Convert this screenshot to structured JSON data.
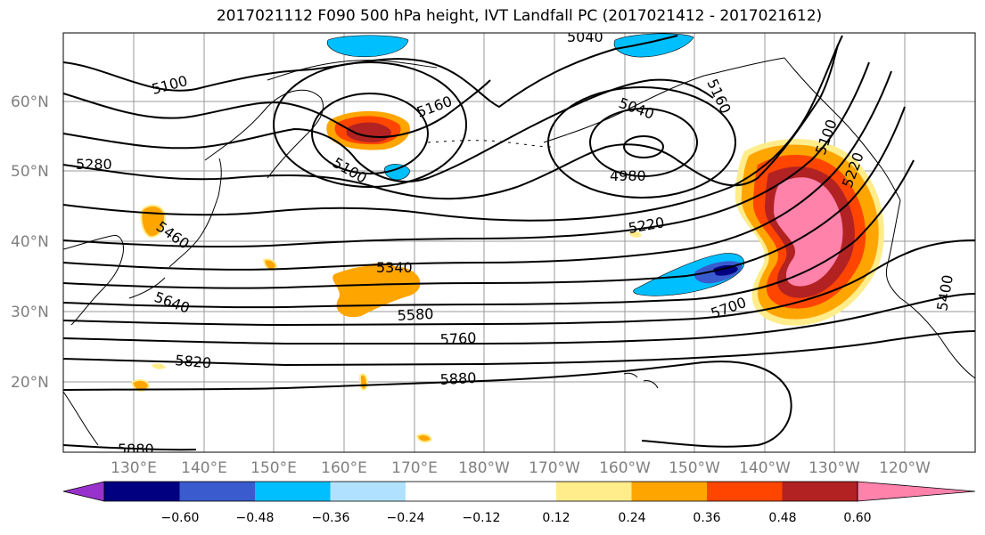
{
  "title": "2017021112 F090 500 hPa height, IVT Landfall PC (2017021412 - 2017021612)",
  "lat_labels": [
    "60°N",
    "50°N",
    "40°N",
    "30°N",
    "20°N"
  ],
  "lon_labels": [
    "130°E",
    "140°E",
    "150°E",
    "160°E",
    "170°E",
    "180°W",
    "170°W",
    "160°W",
    "150°W",
    "140°W",
    "130°W",
    "120°W"
  ],
  "contour_labels": [
    "5100",
    "5160",
    "5040",
    "5160",
    "5280",
    "5100",
    "4980",
    "5220",
    "5460",
    "5340",
    "5580",
    "5640",
    "5760",
    "5700",
    "5820",
    "5880",
    "5880",
    "5040",
    "5100",
    "5220",
    "5400"
  ],
  "colorbar": {
    "colors": [
      "#9932CC",
      "#000080",
      "#3A5BCD",
      "#00BFFF",
      "#B0E2FF",
      "#FFFFFF",
      "#FFFFFF",
      "#FFEC8B",
      "#FFA500",
      "#FF4500",
      "#B22222",
      "#FF82AB"
    ],
    "ticks": [
      "−0.60",
      "−0.48",
      "−0.36",
      "−0.24",
      "−0.12",
      "0.12",
      "0.24",
      "0.36",
      "0.48",
      "0.60"
    ]
  }
}
